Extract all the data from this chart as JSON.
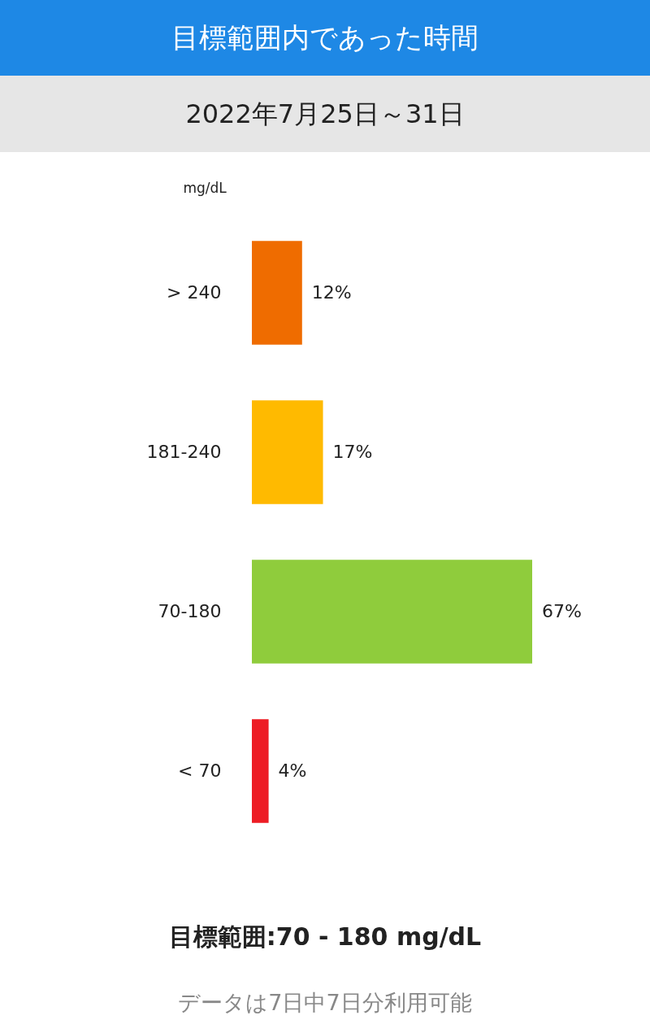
{
  "chart_data": {
    "type": "bar",
    "orientation": "horizontal",
    "title": "目標範囲内であった時間",
    "subtitle": "2022年7月25日～31日",
    "ylabel": "mg/dL",
    "categories": [
      "> 240",
      "181-240",
      "70-180",
      "< 70"
    ],
    "values": [
      12,
      17,
      67,
      4
    ],
    "colors": [
      "#ef6c00",
      "#ffba00",
      "#8fcc3c",
      "#ed1c24"
    ],
    "data_labels": true,
    "value_labels": [
      "12%",
      "17%",
      "67%",
      "4%"
    ],
    "annotations": [
      "目標範囲:70 - 180 mg/dL",
      "データは7日中7日分利用可能"
    ]
  }
}
